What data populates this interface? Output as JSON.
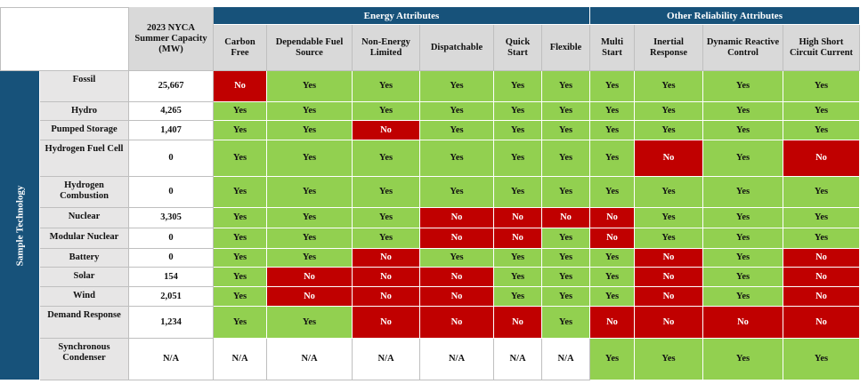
{
  "header": {
    "capacity": "2023 NYCA Summer Capacity (MW)",
    "groups": [
      {
        "title": "Energy Attributes",
        "columns": [
          "Carbon Free",
          "Dependable Fuel Source",
          "Non-Energy Limited",
          "Dispatchable",
          "Quick Start",
          "Flexible"
        ]
      },
      {
        "title": "Other Reliability Attributes",
        "columns": [
          "Multi Start",
          "Inertial Response",
          "Dynamic Reactive Control",
          "High Short Circuit Current"
        ]
      }
    ]
  },
  "row_group": "Sample Technology",
  "rows": [
    {
      "technology": "Fossil",
      "capacity": "25,667",
      "attributes": [
        "No",
        "Yes",
        "Yes",
        "Yes",
        "Yes",
        "Yes",
        "Yes",
        "Yes",
        "Yes",
        "Yes"
      ]
    },
    {
      "technology": "Hydro",
      "capacity": "4,265",
      "attributes": [
        "Yes",
        "Yes",
        "Yes",
        "Yes",
        "Yes",
        "Yes",
        "Yes",
        "Yes",
        "Yes",
        "Yes"
      ]
    },
    {
      "technology": "Pumped Storage",
      "capacity": "1,407",
      "attributes": [
        "Yes",
        "Yes",
        "No",
        "Yes",
        "Yes",
        "Yes",
        "Yes",
        "Yes",
        "Yes",
        "Yes"
      ]
    },
    {
      "technology": "Hydrogen Fuel Cell",
      "capacity": "0",
      "attributes": [
        "Yes",
        "Yes",
        "Yes",
        "Yes",
        "Yes",
        "Yes",
        "Yes",
        "No",
        "Yes",
        "No"
      ]
    },
    {
      "technology": "Hydrogen Combustion",
      "capacity": "0",
      "attributes": [
        "Yes",
        "Yes",
        "Yes",
        "Yes",
        "Yes",
        "Yes",
        "Yes",
        "Yes",
        "Yes",
        "Yes"
      ]
    },
    {
      "technology": "Nuclear",
      "capacity": "3,305",
      "attributes": [
        "Yes",
        "Yes",
        "Yes",
        "No",
        "No",
        "No",
        "No",
        "Yes",
        "Yes",
        "Yes"
      ]
    },
    {
      "technology": "Modular Nuclear",
      "capacity": "0",
      "attributes": [
        "Yes",
        "Yes",
        "Yes",
        "No",
        "No",
        "Yes",
        "No",
        "Yes",
        "Yes",
        "Yes"
      ]
    },
    {
      "technology": "Battery",
      "capacity": "0",
      "attributes": [
        "Yes",
        "Yes",
        "No",
        "Yes",
        "Yes",
        "Yes",
        "Yes",
        "No",
        "Yes",
        "No"
      ]
    },
    {
      "technology": "Solar",
      "capacity": "154",
      "attributes": [
        "Yes",
        "No",
        "No",
        "No",
        "Yes",
        "Yes",
        "Yes",
        "No",
        "Yes",
        "No"
      ]
    },
    {
      "technology": "Wind",
      "capacity": "2,051",
      "attributes": [
        "Yes",
        "No",
        "No",
        "No",
        "Yes",
        "Yes",
        "Yes",
        "No",
        "Yes",
        "No"
      ]
    },
    {
      "technology": "Demand Response",
      "capacity": "1,234",
      "attributes": [
        "Yes",
        "Yes",
        "No",
        "No",
        "No",
        "Yes",
        "No",
        "No",
        "No",
        "No"
      ]
    },
    {
      "technology": "Synchronous Condenser",
      "capacity": "N/A",
      "attributes": [
        "N/A",
        "N/A",
        "N/A",
        "N/A",
        "N/A",
        "N/A",
        "Yes",
        "Yes",
        "Yes",
        "Yes"
      ]
    }
  ],
  "colors": {
    "Yes": "#92d050",
    "No": "#c00000",
    "N/A": "#ffffff"
  }
}
